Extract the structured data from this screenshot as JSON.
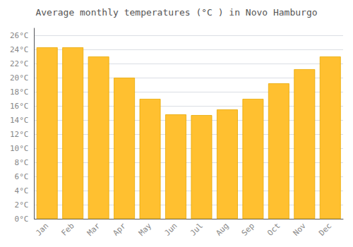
{
  "chart_data": {
    "type": "bar",
    "title": "Average monthly temperatures (°C ) in Novo Hamburgo",
    "categories": [
      "Jan",
      "Feb",
      "Mar",
      "Apr",
      "May",
      "Jun",
      "Jul",
      "Aug",
      "Sep",
      "Oct",
      "Nov",
      "Dec"
    ],
    "values": [
      24.3,
      24.3,
      23.0,
      20.0,
      17.0,
      14.8,
      14.7,
      15.5,
      17.0,
      19.2,
      21.2,
      23.0
    ],
    "color": "#FFC030",
    "ylim": [
      0,
      27
    ],
    "yticks": [
      {
        "value": 0,
        "label": "0°C"
      },
      {
        "value": 2,
        "label": "2°C"
      },
      {
        "value": 4,
        "label": "4°C"
      },
      {
        "value": 6,
        "label": "6°C"
      },
      {
        "value": 8,
        "label": "8°C"
      },
      {
        "value": 10,
        "label": "10°C"
      },
      {
        "value": 12,
        "label": "12°C"
      },
      {
        "value": 14,
        "label": "14°C"
      },
      {
        "value": 16,
        "label": "16°C"
      },
      {
        "value": 18,
        "label": "18°C"
      },
      {
        "value": 20,
        "label": "20°C"
      },
      {
        "value": 22,
        "label": "22°C"
      },
      {
        "value": 24,
        "label": "24°C"
      },
      {
        "value": 26,
        "label": "26°C"
      }
    ],
    "grid": true
  }
}
